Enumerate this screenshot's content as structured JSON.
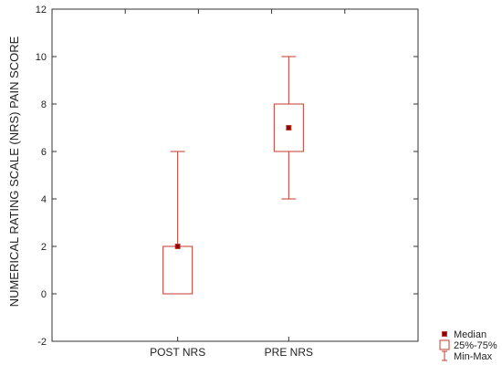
{
  "chart_data": {
    "type": "boxplot",
    "ylabel": "NUMERICAL RATING SCALE (NRS) PAIN SCORE",
    "ylim": [
      -2,
      12
    ],
    "yticks": [
      -2,
      0,
      2,
      4,
      6,
      8,
      10,
      12
    ],
    "categories": [
      "POST NRS",
      "PRE NRS"
    ],
    "boxes": [
      {
        "category": "POST NRS",
        "min": 0,
        "q1": 0,
        "median": 2,
        "q3": 2,
        "max": 6
      },
      {
        "category": "PRE NRS",
        "min": 4,
        "q1": 6,
        "median": 7,
        "q3": 8,
        "max": 10
      }
    ],
    "legend": [
      "Median",
      "25%-75%",
      "Min-Max"
    ],
    "legend_position": "bottom-right",
    "grid": false,
    "colors": {
      "box": "#c0392b",
      "median_fill": "#8b0000"
    }
  }
}
